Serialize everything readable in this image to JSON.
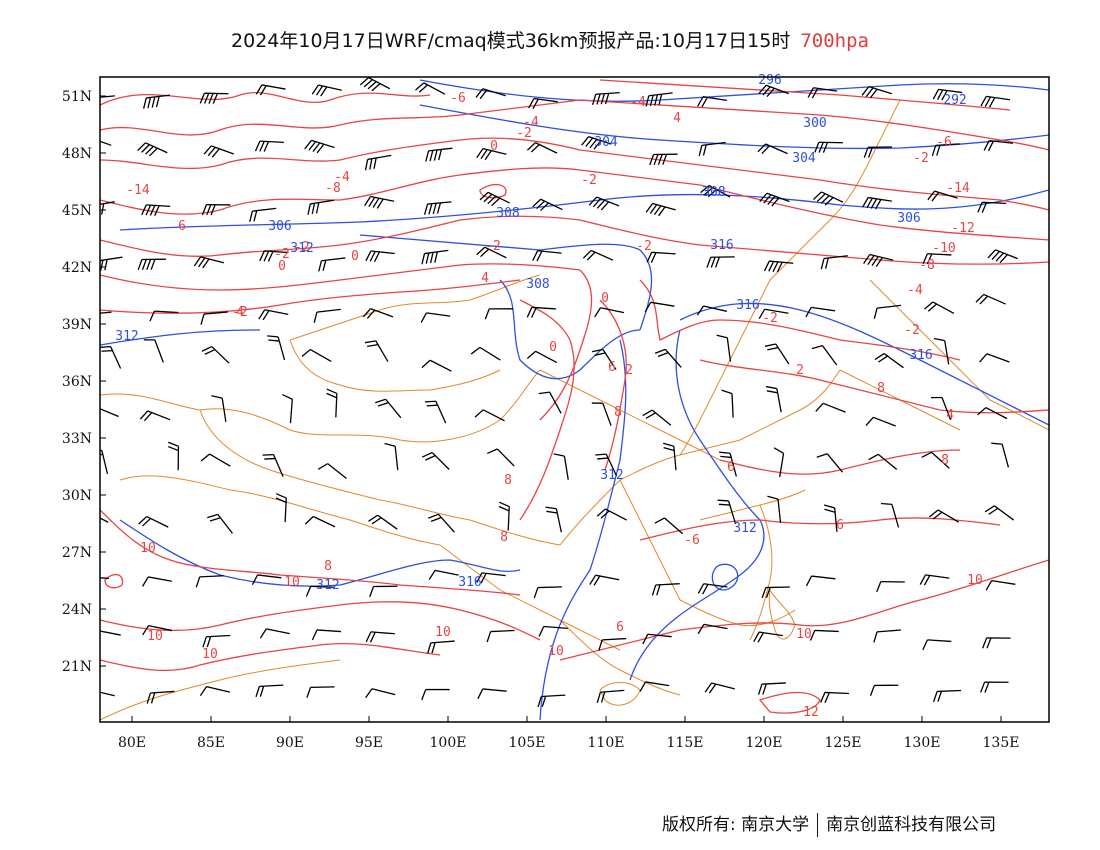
{
  "title": {
    "main": "2024年10月17日WRF/cmaq模式36km预报产品:10月17日15时",
    "level": "700hpa"
  },
  "axes": {
    "lon_ticks": [
      "80E",
      "85E",
      "90E",
      "95E",
      "100E",
      "105E",
      "110E",
      "115E",
      "120E",
      "125E",
      "130E",
      "135E"
    ],
    "lat_ticks": [
      "51N",
      "48N",
      "45N",
      "42N",
      "39N",
      "36N",
      "33N",
      "30N",
      "27N",
      "24N",
      "21N"
    ]
  },
  "contour_labels": {
    "temperature": [
      "-6",
      "-2",
      "-4",
      "0",
      "-2",
      "-14",
      "6",
      "-4",
      "-2",
      "-8",
      "-2",
      "0",
      "4",
      "-4",
      "-2",
      "0",
      "2",
      "-2",
      "0",
      "-2",
      "4",
      "-2",
      "-6",
      "-14",
      "-12",
      "-10",
      "-8",
      "-4",
      "-2",
      "0",
      "-2",
      "2",
      "4",
      "6",
      "8",
      "6",
      "-6",
      "6",
      "8",
      "8",
      "8",
      "10",
      "10",
      "10",
      "10",
      "10",
      "10",
      "10",
      "10",
      "12",
      "8",
      "8",
      "6",
      "4"
    ],
    "geopotential": [
      "296",
      "292",
      "300",
      "304",
      "304",
      "308",
      "308",
      "306",
      "306",
      "312",
      "308",
      "316",
      "316",
      "312",
      "316",
      "312",
      "312",
      "316",
      "312"
    ]
  },
  "colors": {
    "temperature_contour": "#e84444",
    "geopotential_contour": "#2e4fe0",
    "wind_barb": "#000000",
    "boundary": "#e08a2c",
    "frame": "#000000"
  },
  "footer": {
    "owner_label": "版权所有:",
    "org1": "南京大学",
    "org2": "南京创蓝科技有限公司"
  }
}
